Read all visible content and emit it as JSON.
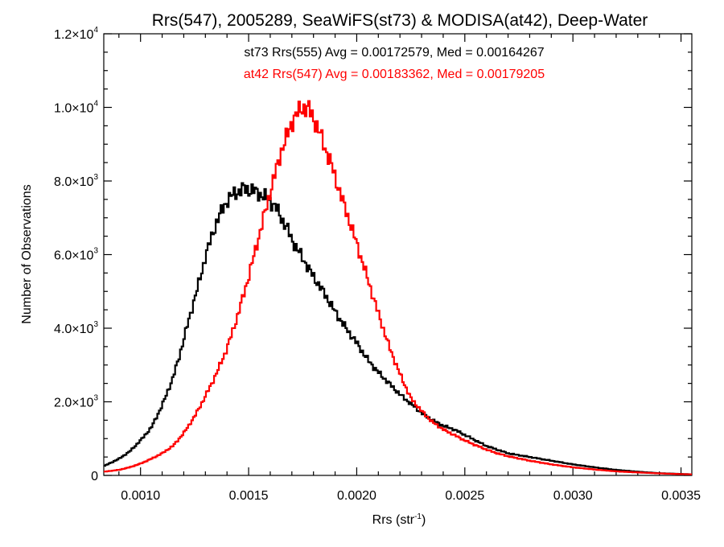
{
  "chart_data": {
    "type": "line",
    "title": "Rrs(547), 2005289, SeaWiFS(st73) & MODISA(at42), Deep-Water",
    "xlabel_base": "Rrs (str",
    "xlabel_sup": "-1",
    "xlabel_close": ")",
    "ylabel": "Number of Observations",
    "xlim": [
      0.00083,
      0.00355
    ],
    "ylim": [
      0,
      12000
    ],
    "grid": false,
    "legend_placement": "top-center",
    "x_ticks": [
      {
        "value": 0.001,
        "label": "0.0010"
      },
      {
        "value": 0.0015,
        "label": "0.0015"
      },
      {
        "value": 0.002,
        "label": "0.0020"
      },
      {
        "value": 0.0025,
        "label": "0.0025"
      },
      {
        "value": 0.003,
        "label": "0.0030"
      },
      {
        "value": 0.0035,
        "label": "0.0035"
      }
    ],
    "y_ticks": [
      {
        "value": 0,
        "mant": "0",
        "exp": ""
      },
      {
        "value": 2000,
        "mant": "2.0×10",
        "exp": "3"
      },
      {
        "value": 4000,
        "mant": "4.0×10",
        "exp": "3"
      },
      {
        "value": 6000,
        "mant": "6.0×10",
        "exp": "3"
      },
      {
        "value": 8000,
        "mant": "8.0×10",
        "exp": "3"
      },
      {
        "value": 10000,
        "mant": "1.0×10",
        "exp": "4"
      },
      {
        "value": 12000,
        "mant": "1.2×10",
        "exp": "4"
      }
    ],
    "series": [
      {
        "name": "st73",
        "legend": "st73 Rrs(555) Avg = 0.00172579, Med = 0.00164267",
        "color": "#000000",
        "x": [
          0.00083,
          0.0009,
          0.00095,
          0.001,
          0.00105,
          0.0011,
          0.00115,
          0.00118,
          0.0012,
          0.00122,
          0.00125,
          0.00128,
          0.0013,
          0.00133,
          0.00135,
          0.00138,
          0.0014,
          0.00143,
          0.00145,
          0.00148,
          0.0015,
          0.00152,
          0.00155,
          0.00158,
          0.0016,
          0.00163,
          0.00165,
          0.00168,
          0.0017,
          0.00175,
          0.0018,
          0.00185,
          0.0019,
          0.00195,
          0.002,
          0.00205,
          0.0021,
          0.00215,
          0.0022,
          0.00225,
          0.0023,
          0.00235,
          0.0024,
          0.00245,
          0.0025,
          0.00255,
          0.0026,
          0.00265,
          0.0027,
          0.0028,
          0.0029,
          0.003,
          0.0031,
          0.0032,
          0.0033,
          0.0034,
          0.0035,
          0.00355
        ],
        "y": [
          250,
          450,
          650,
          950,
          1300,
          1900,
          2650,
          3250,
          3700,
          4150,
          4800,
          5450,
          5950,
          6500,
          6850,
          7250,
          7450,
          7650,
          7700,
          7800,
          7750,
          7750,
          7650,
          7550,
          7450,
          7250,
          7000,
          6700,
          6400,
          5900,
          5400,
          4950,
          4450,
          4000,
          3600,
          3150,
          2800,
          2500,
          2200,
          1950,
          1700,
          1500,
          1350,
          1250,
          1100,
          950,
          800,
          700,
          600,
          500,
          400,
          300,
          220,
          150,
          100,
          60,
          40,
          30
        ]
      },
      {
        "name": "at42",
        "legend": "at42 Rrs(547) Avg = 0.00183362, Med = 0.00179205",
        "color": "#ff0000",
        "x": [
          0.00083,
          0.0009,
          0.00095,
          0.001,
          0.00105,
          0.0011,
          0.00115,
          0.0012,
          0.00125,
          0.0013,
          0.00135,
          0.0014,
          0.00145,
          0.0015,
          0.00155,
          0.0016,
          0.00163,
          0.00165,
          0.00168,
          0.0017,
          0.00172,
          0.00175,
          0.00178,
          0.0018,
          0.00183,
          0.00185,
          0.00188,
          0.0019,
          0.00195,
          0.002,
          0.00205,
          0.0021,
          0.00215,
          0.0022,
          0.00225,
          0.0023,
          0.00235,
          0.0024,
          0.00245,
          0.0025,
          0.00255,
          0.0026,
          0.00265,
          0.0027,
          0.0028,
          0.0029,
          0.003,
          0.0031,
          0.0032,
          0.0033,
          0.0034,
          0.0035,
          0.00355
        ],
        "y": [
          100,
          150,
          220,
          320,
          450,
          600,
          800,
          1150,
          1600,
          2150,
          2750,
          3450,
          4350,
          5400,
          6550,
          7700,
          8350,
          8800,
          9250,
          9600,
          9800,
          10000,
          9950,
          9700,
          9300,
          8950,
          8500,
          8100,
          7200,
          6300,
          5350,
          4400,
          3500,
          2750,
          2100,
          1750,
          1450,
          1250,
          1100,
          950,
          820,
          700,
          600,
          520,
          400,
          300,
          220,
          160,
          110,
          80,
          55,
          35,
          30
        ]
      }
    ]
  }
}
